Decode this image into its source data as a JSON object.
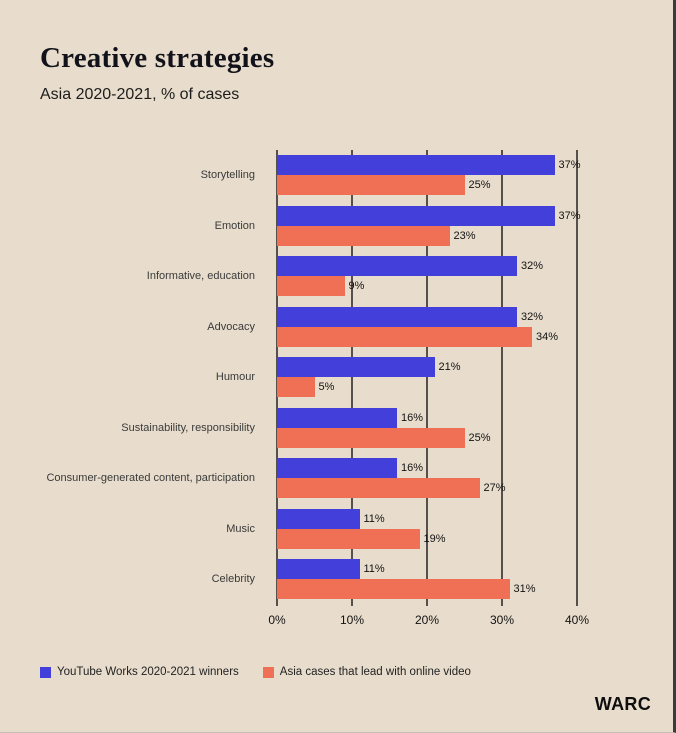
{
  "page": {
    "title": "Creative strategies",
    "subtitle": "Asia 2020-2021, % of cases",
    "brand": "WARC"
  },
  "colors": {
    "background": "#e8ddcc",
    "series1": "#433fdb",
    "series2": "#ef7054",
    "gridline": "#55504b",
    "right_border": "#393c41"
  },
  "chart_data": {
    "type": "bar",
    "orientation": "horizontal",
    "title": "Creative strategies",
    "subtitle": "Asia 2020-2021, % of cases",
    "categories": [
      "Storytelling",
      "Emotion",
      "Informative, education",
      "Advocacy",
      "Humour",
      "Sustainability, responsibility",
      "Consumer-generated content, participation",
      "Music",
      "Celebrity"
    ],
    "series": [
      {
        "name": "YouTube Works 2020-2021 winners",
        "color": "#433fdb",
        "values": [
          37,
          37,
          32,
          32,
          21,
          16,
          16,
          11,
          11
        ]
      },
      {
        "name": "Asia cases that lead with online video",
        "color": "#ef7054",
        "values": [
          25,
          23,
          9,
          34,
          5,
          25,
          27,
          19,
          31
        ]
      }
    ],
    "value_labels": [
      [
        "37%",
        "37%",
        "32%",
        "32%",
        "21%",
        "16%",
        "16%",
        "11%",
        "11%"
      ],
      [
        "25%",
        "23%",
        "9%",
        "34%",
        "5%",
        "25%",
        "27%",
        "19%",
        "31%"
      ]
    ],
    "x_ticks": [
      "0%",
      "10%",
      "20%",
      "30%",
      "40%"
    ],
    "xlim": [
      0,
      40
    ],
    "value_suffix": "%",
    "grid": true,
    "legend_position": "bottom"
  }
}
